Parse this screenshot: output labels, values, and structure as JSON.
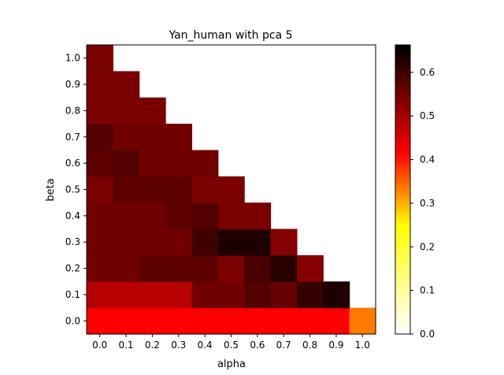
{
  "chart_data": {
    "type": "heatmap",
    "title": "Yan_human with pca 5",
    "xlabel": "alpha",
    "ylabel": "beta",
    "x_ticks": [
      "0.0",
      "0.1",
      "0.2",
      "0.3",
      "0.4",
      "0.5",
      "0.6",
      "0.7",
      "0.8",
      "0.9",
      "1.0"
    ],
    "y_ticks": [
      "0.0",
      "0.1",
      "0.2",
      "0.3",
      "0.4",
      "0.5",
      "0.6",
      "0.7",
      "0.8",
      "0.9",
      "1.0"
    ],
    "colormap": "hot_r",
    "vmin": 0.0,
    "vmax": 0.663,
    "colorbar_ticks": [
      "0.0",
      "0.1",
      "0.2",
      "0.3",
      "0.4",
      "0.5",
      "0.6"
    ],
    "values": [
      [
        0.44,
        0.44,
        0.44,
        0.44,
        0.44,
        0.44,
        0.44,
        0.44,
        0.43,
        0.43,
        0.3
      ],
      [
        0.51,
        0.51,
        0.51,
        0.51,
        0.58,
        0.58,
        0.61,
        0.59,
        0.64,
        0.66,
        null
      ],
      [
        0.58,
        0.58,
        0.6,
        0.6,
        0.6,
        0.57,
        0.62,
        0.65,
        0.56,
        null,
        null
      ],
      [
        0.58,
        0.58,
        0.58,
        0.58,
        0.63,
        0.66,
        0.66,
        0.56,
        null,
        null,
        null
      ],
      [
        0.58,
        0.58,
        0.58,
        0.6,
        0.61,
        0.57,
        0.57,
        null,
        null,
        null,
        null
      ],
      [
        0.57,
        0.6,
        0.6,
        0.6,
        0.57,
        0.57,
        null,
        null,
        null,
        null,
        null
      ],
      [
        0.6,
        0.61,
        0.58,
        0.58,
        0.58,
        null,
        null,
        null,
        null,
        null,
        null
      ],
      [
        0.61,
        0.58,
        0.58,
        0.58,
        null,
        null,
        null,
        null,
        null,
        null,
        null
      ],
      [
        0.57,
        0.57,
        0.57,
        null,
        null,
        null,
        null,
        null,
        null,
        null,
        null
      ],
      [
        0.57,
        0.57,
        null,
        null,
        null,
        null,
        null,
        null,
        null,
        null,
        null
      ],
      [
        0.57,
        null,
        null,
        null,
        null,
        null,
        null,
        null,
        null,
        null,
        null
      ]
    ]
  }
}
